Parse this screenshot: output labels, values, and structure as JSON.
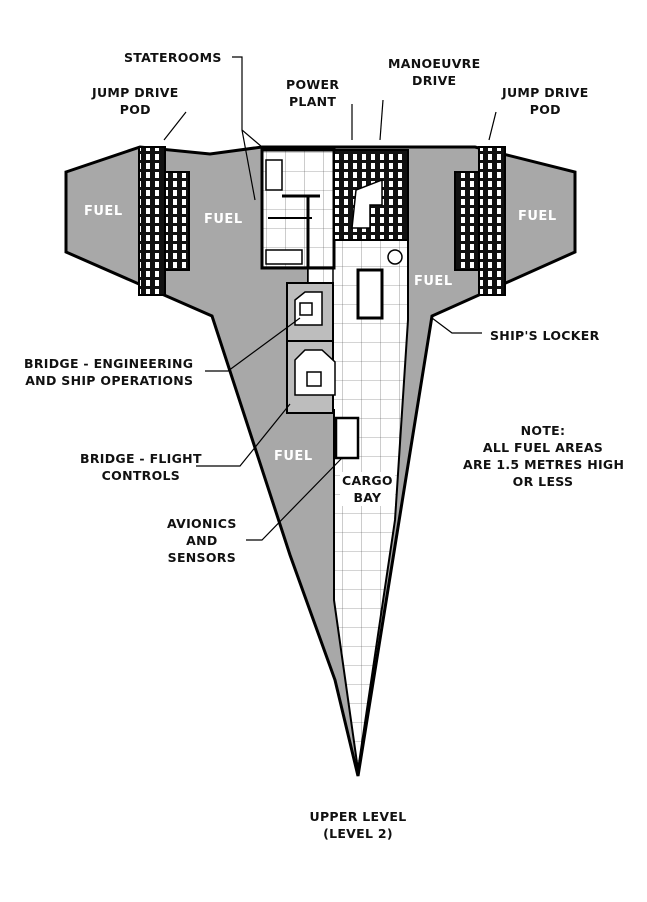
{
  "labels": {
    "staterooms": "Staterooms",
    "jump_drive_pod_left_1": "Jump Drive",
    "jump_drive_pod_left_2": "Pod",
    "power_plant_1": "Power",
    "power_plant_2": "Plant",
    "manoeuvre_drive_1": "Manoeuvre",
    "manoeuvre_drive_2": "Drive",
    "jump_drive_pod_right_1": "Jump Drive",
    "jump_drive_pod_right_2": "Pod",
    "ships_locker": "Ship's Locker",
    "bridge_engineering_1": "Bridge - Engineering",
    "bridge_engineering_2": "and Ship Operations",
    "bridge_flight_1": "Bridge - Flight",
    "bridge_flight_2": "Controls",
    "avionics_1": "Avionics",
    "avionics_2": "and",
    "avionics_3": "Sensors",
    "cargo_bay_1": "Cargo",
    "cargo_bay_2": "Bay"
  },
  "fuel_label": "Fuel",
  "note": {
    "title": "Note:",
    "line1": "All fuel areas",
    "line2": "are 1.5 metres high",
    "line3": "or less"
  },
  "level": {
    "line1": "Upper Level",
    "line2": "(level 2)"
  },
  "colors": {
    "hull_fill": "#a8a8a8",
    "outline": "#000000",
    "floor": "#ffffff",
    "bridge_fill": "#bdbdbd"
  }
}
